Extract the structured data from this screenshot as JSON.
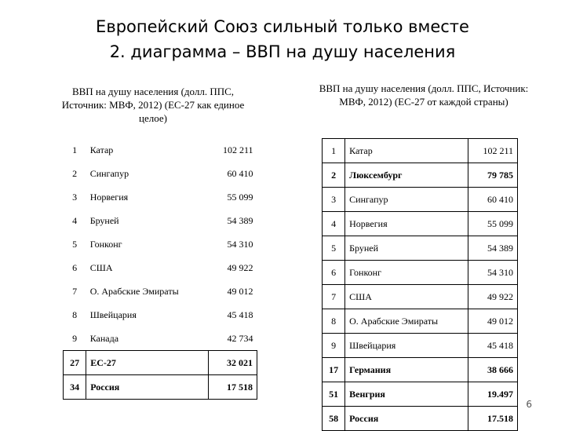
{
  "title": {
    "line1": "Европейский Союз сильный только вместе",
    "line2": "2. диаграмма – ВВП на душу населения"
  },
  "left": {
    "caption": "ВВП на душу населения (долл. ППС, Источник: МВФ, 2012) (ЕС-27 как единое целое)",
    "rows": [
      {
        "rank": "1",
        "country": "Катар",
        "value": "102 211"
      },
      {
        "rank": "2",
        "country": "Сингапур",
        "value": "60 410"
      },
      {
        "rank": "3",
        "country": "Норвегия",
        "value": "55 099"
      },
      {
        "rank": "4",
        "country": "Бруней",
        "value": "54 389"
      },
      {
        "rank": "5",
        "country": "Гонконг",
        "value": "54 310"
      },
      {
        "rank": "6",
        "country": "США",
        "value": "49 922"
      },
      {
        "rank": "7",
        "country": "О. Арабские Эмираты",
        "value": "49 012"
      },
      {
        "rank": "8",
        "country": "Швейцария",
        "value": "45 418"
      },
      {
        "rank": "9",
        "country": "Канада",
        "value": "42 734"
      },
      {
        "rank": "27",
        "country": "ЕС-27",
        "value": "32 021"
      },
      {
        "rank": "34",
        "country": "Россия",
        "value": "17 518"
      }
    ]
  },
  "right": {
    "caption": "ВВП на душу населения (долл. ППС, Источник: МВФ, 2012) (ЕС-27 от каждой страны)",
    "rows": [
      {
        "rank": "1",
        "country": "Катар",
        "value": "102 211"
      },
      {
        "rank": "2",
        "country": "Люксембург",
        "value": "79 785"
      },
      {
        "rank": "3",
        "country": "Сингапур",
        "value": "60 410"
      },
      {
        "rank": "4",
        "country": "Норвегия",
        "value": "55 099"
      },
      {
        "rank": "5",
        "country": "Бруней",
        "value": "54 389"
      },
      {
        "rank": "6",
        "country": "Гонконг",
        "value": "54 310"
      },
      {
        "rank": "7",
        "country": "США",
        "value": "49 922"
      },
      {
        "rank": "8",
        "country": "О. Арабские Эмираты",
        "value": "49 012"
      },
      {
        "rank": "9",
        "country": "Швейцария",
        "value": "45 418"
      },
      {
        "rank": "17",
        "country": "Германия",
        "value": "38 666"
      },
      {
        "rank": "51",
        "country": "Венгрия",
        "value": "19.497"
      },
      {
        "rank": "58",
        "country": "Россия",
        "value": "17.518"
      }
    ]
  },
  "page_number": "6"
}
